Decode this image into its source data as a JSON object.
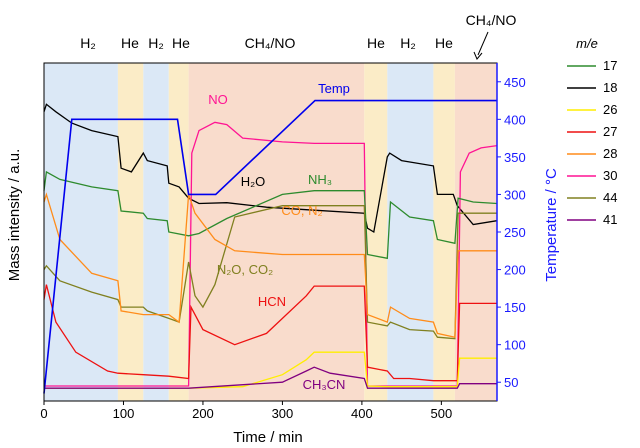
{
  "chart_data": {
    "type": "line",
    "title": "",
    "xlabel": "Time / min",
    "ylabel": "Mass intensity / a.u.",
    "y2label": "Temperature / °C",
    "xlim": [
      0,
      570
    ],
    "y2lim": [
      25,
      475
    ],
    "xticks": [
      "0",
      "100",
      "200",
      "300",
      "400",
      "500"
    ],
    "xtick_values": [
      0,
      100,
      200,
      300,
      400,
      500
    ],
    "y2ticks": [
      "50",
      "100",
      "150",
      "200",
      "250",
      "300",
      "350",
      "400",
      "450"
    ],
    "y2tick_values": [
      50,
      100,
      150,
      200,
      250,
      300,
      350,
      400,
      450
    ],
    "grid": false,
    "legend": {
      "title": "m/e",
      "placement": "outside-right",
      "entries": [
        {
          "label": "17",
          "color": "#2e8b2e"
        },
        {
          "label": "18",
          "color": "#000000"
        },
        {
          "label": "26",
          "color": "#ffee00"
        },
        {
          "label": "27",
          "color": "#ee1111"
        },
        {
          "label": "28",
          "color": "#ff8c1a"
        },
        {
          "label": "30",
          "color": "#ff1493"
        },
        {
          "label": "44",
          "color": "#808020"
        },
        {
          "label": "41",
          "color": "#800080"
        }
      ]
    },
    "phases": [
      {
        "label": "H2",
        "start": 0,
        "end": 93,
        "color": "#dbe8f6"
      },
      {
        "label": "He",
        "start": 93,
        "end": 125,
        "color": "#fbecc7"
      },
      {
        "label": "H2",
        "start": 125,
        "end": 157,
        "color": "#dbe8f6"
      },
      {
        "label": "He",
        "start": 157,
        "end": 182,
        "color": "#fbecc7"
      },
      {
        "label": "CH4/NO",
        "start": 182,
        "end": 403,
        "color": "#f9dccc"
      },
      {
        "label": "He",
        "start": 403,
        "end": 432,
        "color": "#fbecc7"
      },
      {
        "label": "H2",
        "start": 432,
        "end": 490,
        "color": "#dbe8f6"
      },
      {
        "label": "He",
        "start": 490,
        "end": 517,
        "color": "#fbecc7"
      },
      {
        "label": "CH4/NO",
        "start": 517,
        "end": 570,
        "color": "#f9dccc"
      }
    ],
    "temperature": {
      "name": "Temp",
      "color": "#0000ee",
      "x": [
        0,
        35,
        168,
        182,
        216,
        341,
        570
      ],
      "y": [
        35,
        400,
        400,
        300,
        300,
        425,
        425
      ]
    },
    "series": [
      {
        "name": "18",
        "color": "#000000",
        "x": [
          0,
          3,
          15,
          35,
          60,
          93,
          97,
          110,
          125,
          130,
          155,
          157,
          170,
          182,
          195,
          230,
          280,
          340,
          403,
          407,
          415,
          432,
          435,
          450,
          490,
          495,
          515,
          520,
          540,
          570
        ],
        "y": [
          410,
          420,
          410,
          395,
          385,
          377,
          335,
          330,
          355,
          345,
          338,
          315,
          310,
          295,
          288,
          289,
          283,
          279,
          275,
          255,
          250,
          350,
          355,
          345,
          338,
          300,
          300,
          285,
          260,
          265
        ]
      },
      {
        "name": "30",
        "color": "#ff1493",
        "x": [
          0,
          93,
          182,
          186,
          195,
          215,
          230,
          250,
          300,
          340,
          403,
          407,
          432,
          520,
          524,
          535,
          550,
          570
        ],
        "y": [
          45,
          45,
          45,
          355,
          385,
          396,
          393,
          375,
          370,
          368,
          368,
          45,
          45,
          45,
          330,
          355,
          362,
          365
        ]
      },
      {
        "name": "17",
        "color": "#2e8b2e",
        "x": [
          0,
          3,
          20,
          60,
          93,
          97,
          125,
          130,
          155,
          157,
          182,
          195,
          230,
          300,
          340,
          403,
          407,
          432,
          436,
          460,
          490,
          495,
          517,
          521,
          540,
          570
        ],
        "y": [
          305,
          330,
          320,
          310,
          305,
          278,
          275,
          268,
          265,
          250,
          245,
          248,
          268,
          300,
          305,
          305,
          220,
          215,
          290,
          270,
          265,
          240,
          235,
          295,
          290,
          288
        ]
      },
      {
        "name": "44",
        "color": "#808020",
        "x": [
          0,
          3,
          20,
          60,
          93,
          97,
          125,
          130,
          157,
          170,
          182,
          190,
          200,
          215,
          240,
          300,
          340,
          403,
          407,
          432,
          436,
          460,
          490,
          495,
          517,
          521,
          570
        ],
        "y": [
          200,
          205,
          185,
          170,
          160,
          150,
          150,
          145,
          135,
          130,
          210,
          165,
          150,
          180,
          270,
          285,
          285,
          285,
          130,
          125,
          130,
          120,
          118,
          110,
          108,
          275,
          275
        ]
      },
      {
        "name": "28",
        "color": "#ff8c1a",
        "x": [
          0,
          3,
          20,
          60,
          93,
          97,
          125,
          130,
          157,
          170,
          182,
          190,
          215,
          240,
          300,
          340,
          403,
          407,
          432,
          436,
          460,
          490,
          495,
          517,
          521,
          570
        ],
        "y": [
          290,
          300,
          240,
          195,
          185,
          145,
          140,
          140,
          140,
          130,
          300,
          275,
          240,
          225,
          220,
          220,
          220,
          140,
          130,
          150,
          135,
          130,
          115,
          110,
          225,
          225
        ]
      },
      {
        "name": "27",
        "color": "#ee1111",
        "x": [
          0,
          3,
          15,
          40,
          80,
          93,
          125,
          157,
          182,
          185,
          200,
          240,
          280,
          330,
          340,
          403,
          407,
          432,
          440,
          460,
          490,
          520,
          523,
          570
        ],
        "y": [
          160,
          180,
          130,
          90,
          65,
          62,
          60,
          58,
          55,
          150,
          120,
          100,
          115,
          165,
          178,
          178,
          70,
          65,
          55,
          55,
          52,
          52,
          155,
          155
        ]
      },
      {
        "name": "26",
        "color": "#ffee00",
        "x": [
          0,
          182,
          250,
          300,
          330,
          340,
          403,
          407,
          432,
          520,
          523,
          570
        ],
        "y": [
          42,
          42,
          44,
          60,
          80,
          90,
          90,
          45,
          44,
          44,
          82,
          82
        ]
      },
      {
        "name": "41",
        "color": "#800080",
        "x": [
          0,
          182,
          300,
          330,
          340,
          360,
          403,
          407,
          432,
          520,
          523,
          570
        ],
        "y": [
          42,
          42,
          50,
          65,
          70,
          62,
          55,
          42,
          42,
          42,
          48,
          48
        ]
      }
    ],
    "annotations": [
      {
        "text": "Temp",
        "color": "#0000ee"
      },
      {
        "text": "NO",
        "color": "#ff1493"
      },
      {
        "text": "H₂O",
        "color": "#000000"
      },
      {
        "text": "NH₃",
        "color": "#2e8b2e"
      },
      {
        "text": "CO, N₂",
        "color": "#ff8c1a"
      },
      {
        "text": "N₂O, CO₂",
        "color": "#808020"
      },
      {
        "text": "HCN",
        "color": "#ee1111"
      },
      {
        "text": "CH₃CN",
        "color": "#800080"
      }
    ],
    "phase_labels": [
      "H₂",
      "He",
      "H₂",
      "He",
      "CH₄/NO",
      "He",
      "H₂",
      "He",
      "CH₄/NO"
    ]
  }
}
